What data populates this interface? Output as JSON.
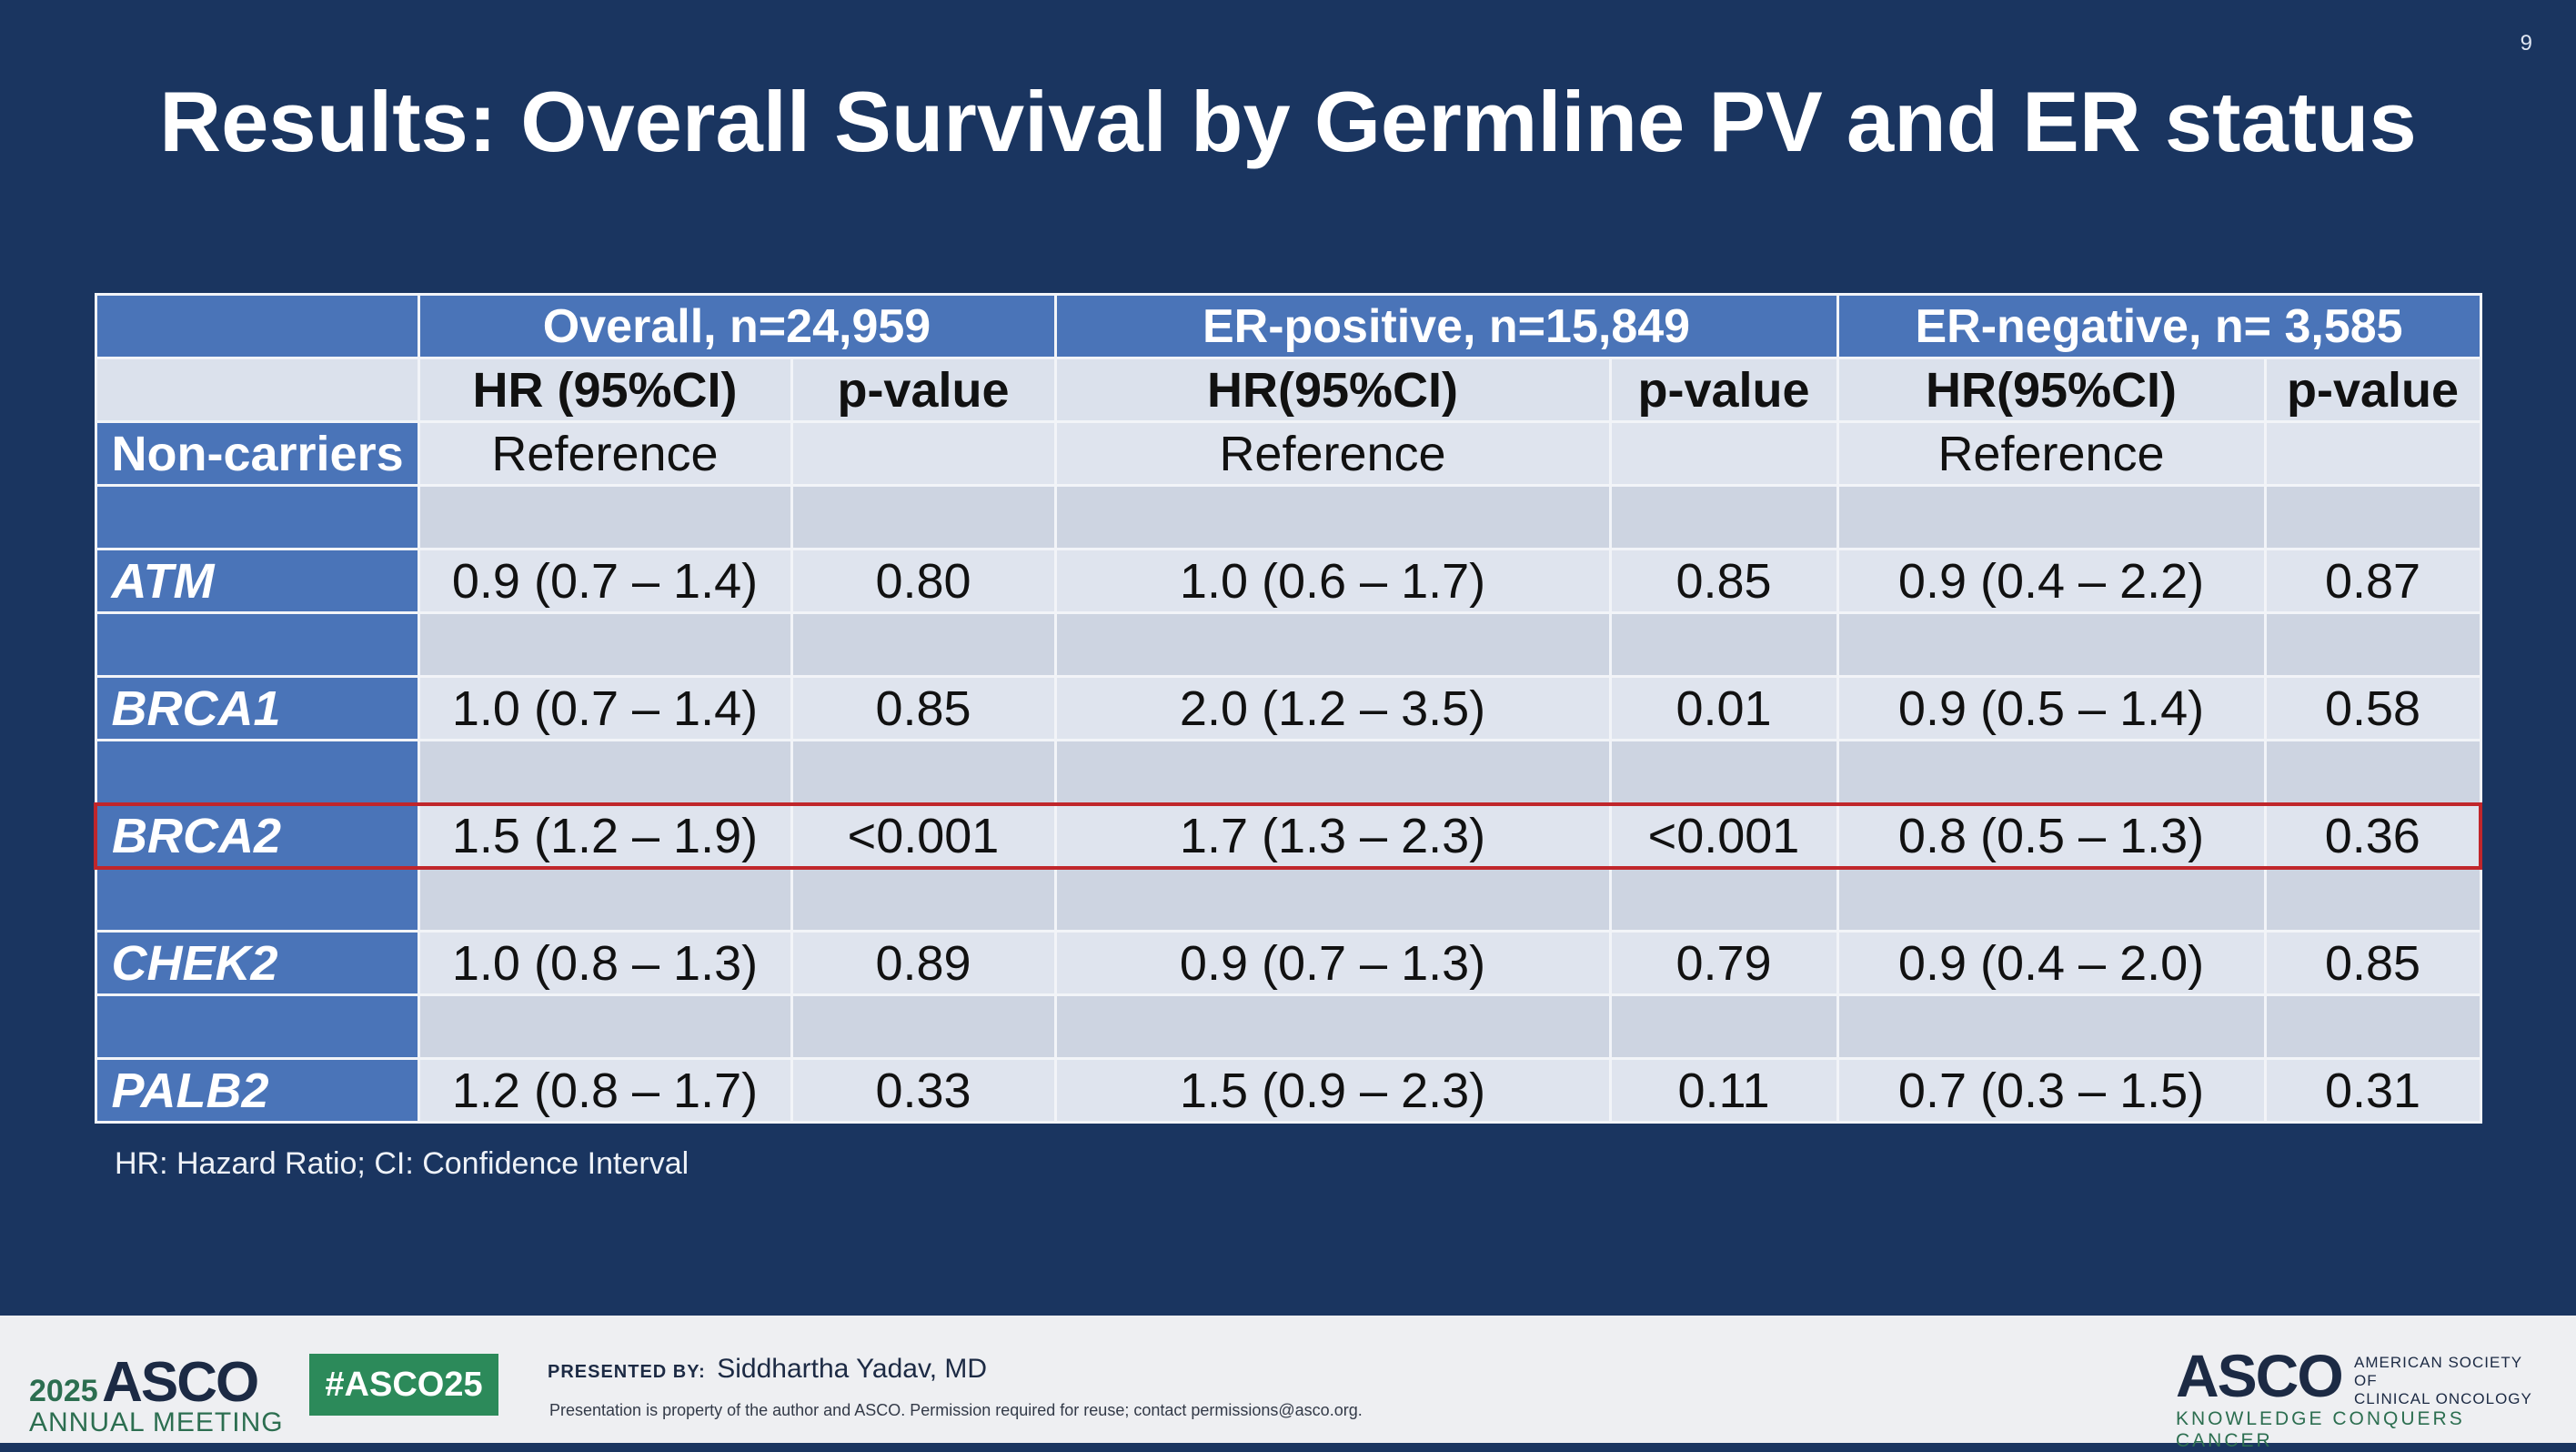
{
  "slide_number": "9",
  "title": "Results: Overall Survival by Germline PV and ER status",
  "table": {
    "groups": [
      "Overall, n=24,959",
      "ER-positive, n=15,849",
      "ER-negative, n= 3,585"
    ],
    "subheaders": [
      "HR (95%CI)",
      "p-value",
      "HR(95%CI)",
      "p-value",
      "HR(95%CI)",
      "p-value"
    ],
    "reference_row": {
      "label": "Non-carriers",
      "value": "Reference"
    },
    "rows": [
      {
        "gene": "ATM",
        "values": [
          "0.9 (0.7 – 1.4)",
          "0.80",
          "1.0 (0.6 – 1.7)",
          "0.85",
          "0.9 (0.4 – 2.2)",
          "0.87"
        ]
      },
      {
        "gene": "BRCA1",
        "values": [
          "1.0 (0.7 – 1.4)",
          "0.85",
          "2.0 (1.2 – 3.5)",
          "0.01",
          "0.9 (0.5 – 1.4)",
          "0.58"
        ]
      },
      {
        "gene": "BRCA2",
        "values": [
          "1.5 (1.2 – 1.9)",
          "<0.001",
          "1.7 (1.3 – 2.3)",
          "<0.001",
          "0.8 (0.5 – 1.3)",
          "0.36"
        ]
      },
      {
        "gene": "CHEK2",
        "values": [
          "1.0 (0.8 – 1.3)",
          "0.89",
          "0.9 (0.7 – 1.3)",
          "0.79",
          "0.9 (0.4 – 2.0)",
          "0.85"
        ]
      },
      {
        "gene": "PALB2",
        "values": [
          "1.2 (0.8 – 1.7)",
          "0.33",
          "1.5 (0.9 – 2.3)",
          "0.11",
          "0.7 (0.3 – 1.5)",
          "0.31"
        ]
      }
    ],
    "highlight_color": "#c0262b"
  },
  "footnote": "HR: Hazard Ratio; CI: Confidence Interval",
  "footer": {
    "meeting_year": "2025",
    "meeting_brand": "ASCO",
    "meeting_label": "ANNUAL MEETING",
    "hashtag": "#ASCO25",
    "presented_by_label": "PRESENTED BY:",
    "presenter": "Siddhartha Yadav, MD",
    "rights": "Presentation is property of the author and ASCO. Permission required for reuse; contact permissions@asco.org.",
    "logo_word": "ASCO",
    "logo_society_line1": "AMERICAN SOCIETY OF",
    "logo_society_line2": "CLINICAL ONCOLOGY",
    "logo_tagline": "KNOWLEDGE CONQUERS CANCER"
  }
}
